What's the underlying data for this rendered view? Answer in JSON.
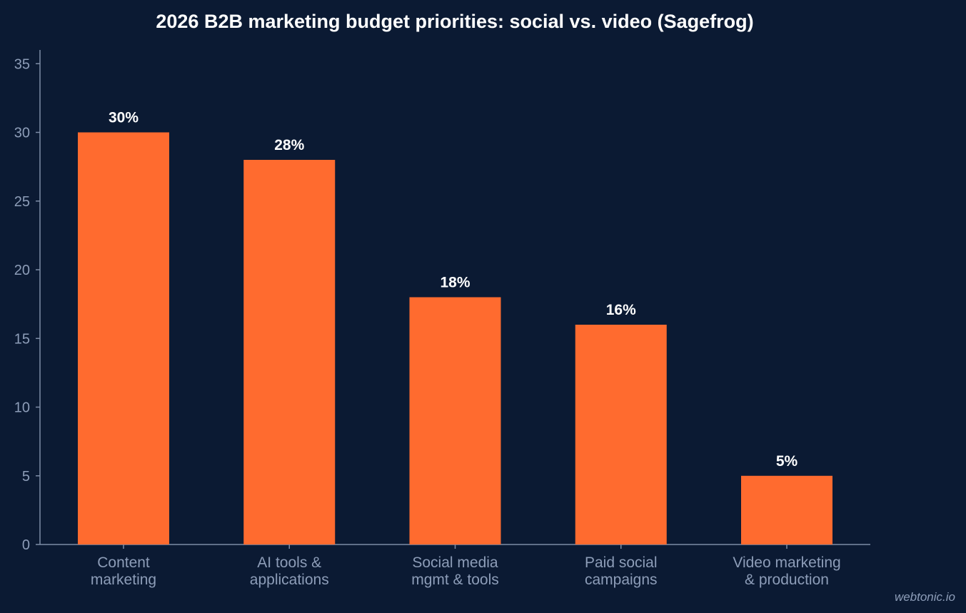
{
  "chart_data": {
    "type": "bar",
    "title": "2026 B2B marketing budget priorities: social vs. video (Sagefrog)",
    "categories": [
      [
        "Content",
        "marketing"
      ],
      [
        "AI tools &",
        "applications"
      ],
      [
        "Social media",
        "mgmt & tools"
      ],
      [
        "Paid social",
        "campaigns"
      ],
      [
        "Video marketing",
        "& production"
      ]
    ],
    "values": [
      30,
      28,
      18,
      16,
      5
    ],
    "data_labels": [
      "30%",
      "28%",
      "18%",
      "16%",
      "5%"
    ],
    "ylim": [
      0,
      36
    ],
    "yticks": [
      0,
      5,
      10,
      15,
      20,
      25,
      30,
      35
    ],
    "xlabel": "",
    "ylabel": "",
    "grid": false,
    "bar_color": "#ff6b2f"
  },
  "watermark": "webtonic.io"
}
